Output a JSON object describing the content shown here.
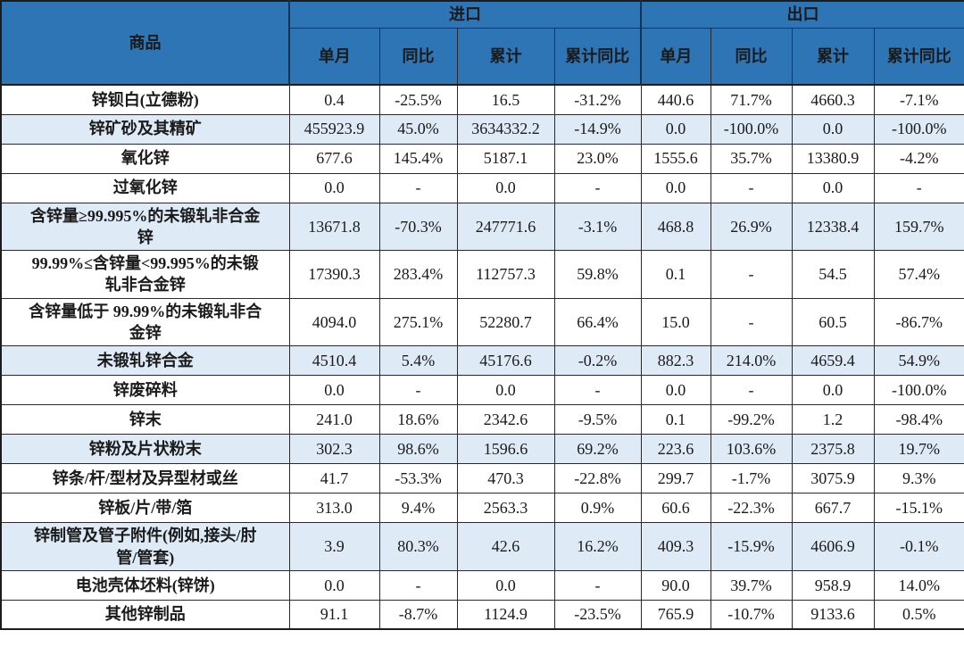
{
  "colors": {
    "header_bg": "#2E75B6",
    "header_text": "#FFFFFF",
    "shaded_row_bg": "#DEEAF6",
    "grid_border": "#2A2A2A",
    "outer_border": "#1C1C1C",
    "text": "#1A1A1A"
  },
  "chart_data": {
    "type": "table",
    "header": {
      "product": "商品",
      "import_group": "进口",
      "export_group": "出口",
      "import_subcols": [
        "单月",
        "同比",
        "累计",
        "累计同比"
      ],
      "export_subcols": [
        "单月",
        "同比",
        "累计",
        "累计同比"
      ]
    },
    "rows": [
      {
        "product": "锌钡白(立德粉)",
        "shaded": false,
        "import": [
          "0.4",
          "-25.5%",
          "16.5",
          "-31.2%"
        ],
        "export": [
          "440.6",
          "71.7%",
          "4660.3",
          "-7.1%"
        ]
      },
      {
        "product": "锌矿砂及其精矿",
        "shaded": true,
        "import": [
          "455923.9",
          "45.0%",
          "3634332.2",
          "-14.9%"
        ],
        "export": [
          "0.0",
          "-100.0%",
          "0.0",
          "-100.0%"
        ]
      },
      {
        "product": "氧化锌",
        "shaded": false,
        "import": [
          "677.6",
          "145.4%",
          "5187.1",
          "23.0%"
        ],
        "export": [
          "1555.6",
          "35.7%",
          "13380.9",
          "-4.2%"
        ]
      },
      {
        "product": "过氧化锌",
        "shaded": false,
        "import": [
          "0.0",
          "-",
          "0.0",
          "-"
        ],
        "export": [
          "0.0",
          "-",
          "0.0",
          "-"
        ]
      },
      {
        "product": "含锌量≥99.995%的未锻轧非合金锌",
        "shaded": true,
        "import": [
          "13671.8",
          "-70.3%",
          "247771.6",
          "-3.1%"
        ],
        "export": [
          "468.8",
          "26.9%",
          "12338.4",
          "159.7%"
        ]
      },
      {
        "product": "99.99%≤含锌量<99.995%的未锻轧非合金锌",
        "shaded": false,
        "import": [
          "17390.3",
          "283.4%",
          "112757.3",
          "59.8%"
        ],
        "export": [
          "0.1",
          "-",
          "54.5",
          "57.4%"
        ]
      },
      {
        "product": "含锌量低于 99.99%的未锻轧非合金锌",
        "shaded": false,
        "import": [
          "4094.0",
          "275.1%",
          "52280.7",
          "66.4%"
        ],
        "export": [
          "15.0",
          "-",
          "60.5",
          "-86.7%"
        ]
      },
      {
        "product": "未锻轧锌合金",
        "shaded": true,
        "import": [
          "4510.4",
          "5.4%",
          "45176.6",
          "-0.2%"
        ],
        "export": [
          "882.3",
          "214.0%",
          "4659.4",
          "54.9%"
        ]
      },
      {
        "product": "锌废碎料",
        "shaded": false,
        "import": [
          "0.0",
          "-",
          "0.0",
          "-"
        ],
        "export": [
          "0.0",
          "-",
          "0.0",
          "-100.0%"
        ]
      },
      {
        "product": "锌末",
        "shaded": false,
        "import": [
          "241.0",
          "18.6%",
          "2342.6",
          "-9.5%"
        ],
        "export": [
          "0.1",
          "-99.2%",
          "1.2",
          "-98.4%"
        ]
      },
      {
        "product": "锌粉及片状粉末",
        "shaded": true,
        "import": [
          "302.3",
          "98.6%",
          "1596.6",
          "69.2%"
        ],
        "export": [
          "223.6",
          "103.6%",
          "2375.8",
          "19.7%"
        ]
      },
      {
        "product": "锌条/杆/型材及异型材或丝",
        "shaded": false,
        "import": [
          "41.7",
          "-53.3%",
          "470.3",
          "-22.8%"
        ],
        "export": [
          "299.7",
          "-1.7%",
          "3075.9",
          "9.3%"
        ]
      },
      {
        "product": "锌板/片/带/箔",
        "shaded": false,
        "import": [
          "313.0",
          "9.4%",
          "2563.3",
          "0.9%"
        ],
        "export": [
          "60.6",
          "-22.3%",
          "667.7",
          "-15.1%"
        ]
      },
      {
        "product": "锌制管及管子附件(例如,接头/肘管/管套)",
        "shaded": true,
        "import": [
          "3.9",
          "80.3%",
          "42.6",
          "16.2%"
        ],
        "export": [
          "409.3",
          "-15.9%",
          "4606.9",
          "-0.1%"
        ]
      },
      {
        "product": "电池壳体坯料(锌饼)",
        "shaded": false,
        "import": [
          "0.0",
          "-",
          "0.0",
          "-"
        ],
        "export": [
          "90.0",
          "39.7%",
          "958.9",
          "14.0%"
        ]
      },
      {
        "product": "其他锌制品",
        "shaded": false,
        "import": [
          "91.1",
          "-8.7%",
          "1124.9",
          "-23.5%"
        ],
        "export": [
          "765.9",
          "-10.7%",
          "9133.6",
          "0.5%"
        ]
      }
    ]
  }
}
